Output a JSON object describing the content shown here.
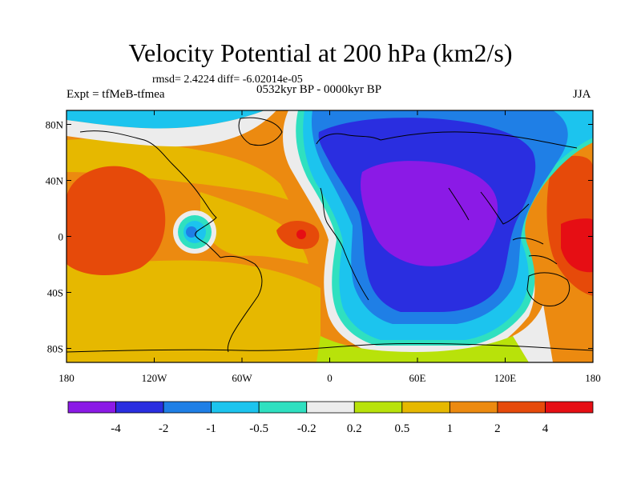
{
  "title": "Velocity Potential at 200 hPa (km2/s)",
  "stats": "rmsd= 2.4224 diff= -6.02014e-05",
  "expt": "Expt = tfMeB-tfmea",
  "period": "0532kyr BP - 0000kyr BP",
  "season": "JJA",
  "map": {
    "projection": "cylindrical equidistant",
    "x_range": [
      -180,
      180
    ],
    "y_range": [
      -90,
      90
    ],
    "lon_ticks": [
      {
        "value": -180,
        "label": "180"
      },
      {
        "value": -120,
        "label": "120W"
      },
      {
        "value": -60,
        "label": "60W"
      },
      {
        "value": 0,
        "label": "0"
      },
      {
        "value": 60,
        "label": "60E"
      },
      {
        "value": 120,
        "label": "120E"
      },
      {
        "value": 180,
        "label": "180"
      }
    ],
    "lat_ticks": [
      {
        "value": 80,
        "label": "80N"
      },
      {
        "value": 40,
        "label": "40N"
      },
      {
        "value": 0,
        "label": "0"
      },
      {
        "value": -40,
        "label": "40S"
      },
      {
        "value": -80,
        "label": "80S"
      }
    ]
  },
  "colorbar": {
    "labels": [
      "-4",
      "-2",
      "-1",
      "-0.5",
      "-0.2",
      "0.2",
      "0.5",
      "1",
      "2",
      "4"
    ],
    "colors": [
      "#8b1ae6",
      "#2a2ee0",
      "#1f7fe6",
      "#1cc4ee",
      "#2fe0c0",
      "#ececec",
      "#b8e20a",
      "#e6b800",
      "#ec8a10",
      "#e64a0a",
      "#e60e14"
    ]
  }
}
